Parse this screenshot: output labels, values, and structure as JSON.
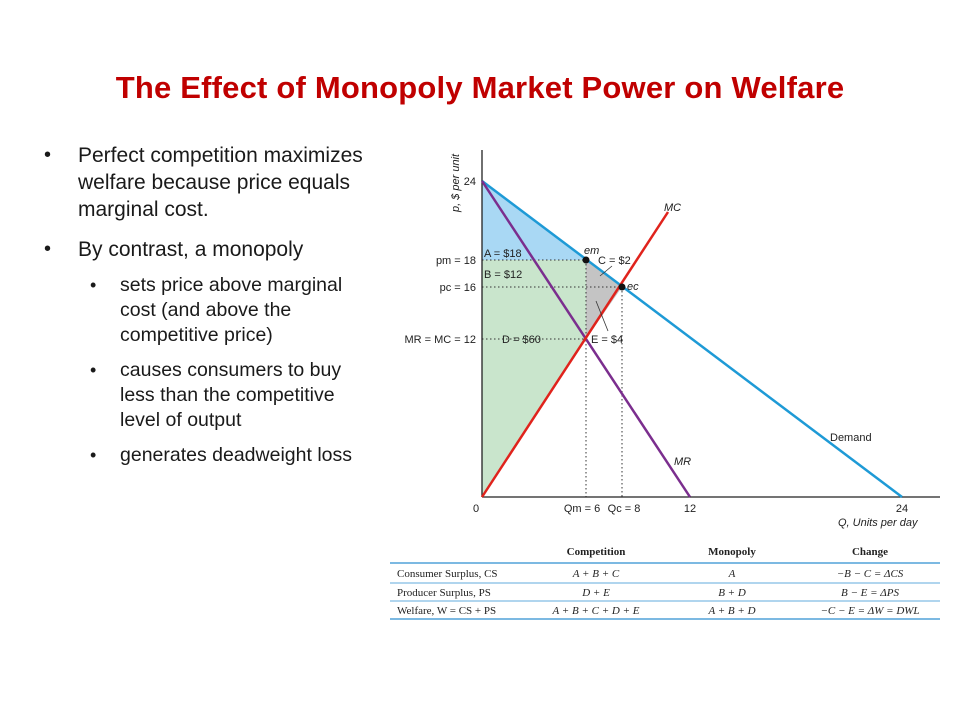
{
  "title": "The Effect of Monopoly Market Power on Welfare",
  "bullets": {
    "b1": "Perfect competition maximizes welfare because price equals marginal cost.",
    "b2": "By contrast, a monopoly",
    "sub1": "sets price above marginal cost (and above the competitive price)",
    "sub2": "causes consumers to buy less than the competitive level of output",
    "sub3": "generates deadweight loss"
  },
  "graph": {
    "y_axis_label": "p, $ per unit",
    "x_axis_label": "Q, Units per day",
    "y_ticks": {
      "t24": "24",
      "pm": "pm = 18",
      "pc": "pc = 16",
      "mr": "MR = MC = 12"
    },
    "x_ticks": {
      "t0": "0",
      "qm": "Qm = 6",
      "qc": "Qc = 8",
      "t12": "12",
      "t24": "24"
    },
    "labels": {
      "mc": "MC",
      "mr": "MR",
      "demand": "Demand",
      "em": "em",
      "ec": "ec",
      "area_a": "A = $18",
      "area_b": "B = $12",
      "area_c": "C = $2",
      "area_d": "D = $60",
      "area_e": "E = $4"
    },
    "colors": {
      "demand": "#1e9ad6",
      "mc": "#e0231c",
      "mr": "#7b2e8e",
      "cs": "#a9d8f4",
      "ps": "#c9e5cc",
      "dwl": "#c4c4c4"
    }
  },
  "table": {
    "headers": [
      "",
      "Competition",
      "Monopoly",
      "Change"
    ],
    "rows": [
      [
        "Consumer Surplus, CS",
        "A + B + C",
        "A",
        "−B − C = ΔCS"
      ],
      [
        "Producer Surplus, PS",
        "D + E",
        "B + D",
        "B − E = ΔPS"
      ],
      [
        "Welfare, W = CS + PS",
        "A + B + C + D + E",
        "A + B + D",
        "−C − E = ΔW = DWL"
      ]
    ]
  }
}
